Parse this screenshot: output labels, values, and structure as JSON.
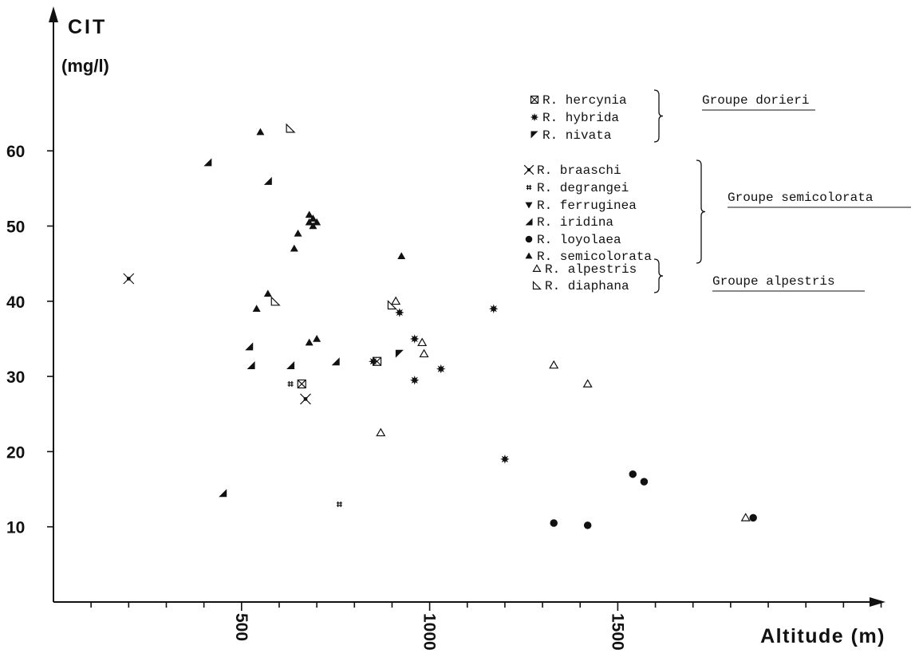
{
  "chart_data": {
    "type": "scatter",
    "ylabel": "CIT",
    "yunit": "(mg/l)",
    "xlabel": "Altitude (m)",
    "xlim": [
      0,
      2250
    ],
    "ylim": [
      0,
      70
    ],
    "x_ticks": [
      500,
      1000,
      1500
    ],
    "x_minor_step": 100,
    "y_ticks": [
      10,
      20,
      30,
      40,
      50,
      60
    ],
    "grid": false,
    "legend_placement": "top-right",
    "series": [
      {
        "name": "R. hercynia",
        "marker": "boxed-x",
        "points": [
          [
            660,
            29
          ],
          [
            860,
            32
          ]
        ]
      },
      {
        "name": "R. hybrida",
        "marker": "star",
        "points": [
          [
            920,
            38.5
          ],
          [
            960,
            35
          ],
          [
            960,
            29.5
          ],
          [
            1030,
            31
          ],
          [
            850,
            32
          ],
          [
            1170,
            39
          ],
          [
            1200,
            19
          ]
        ]
      },
      {
        "name": "R. nivata",
        "marker": "half-down",
        "points": [
          [
            920,
            33
          ]
        ]
      },
      {
        "name": "R. braaschi",
        "marker": "cross-dot",
        "points": [
          [
            200,
            43
          ],
          [
            670,
            27
          ]
        ]
      },
      {
        "name": "R. degrangei",
        "marker": "hash",
        "points": [
          [
            630,
            29
          ],
          [
            760,
            13
          ]
        ]
      },
      {
        "name": "R. ferruginea",
        "marker": "triangle-down",
        "points": []
      },
      {
        "name": "R. iridina",
        "marker": "half-up",
        "points": [
          [
            410,
            58.5
          ],
          [
            570,
            56
          ],
          [
            520,
            34
          ],
          [
            525,
            31.5
          ],
          [
            630,
            31.5
          ],
          [
            750,
            32
          ],
          [
            450,
            14.5
          ]
        ]
      },
      {
        "name": "R. loyolaea",
        "marker": "circle",
        "points": [
          [
            1330,
            10.5
          ],
          [
            1420,
            10.2
          ],
          [
            1540,
            17
          ],
          [
            1570,
            16
          ],
          [
            1860,
            11.2
          ]
        ]
      },
      {
        "name": "R. semicolorata",
        "marker": "triangle",
        "points": [
          [
            550,
            62.5
          ],
          [
            680,
            51.5
          ],
          [
            690,
            51
          ],
          [
            680,
            50.5
          ],
          [
            700,
            50.5
          ],
          [
            690,
            50
          ],
          [
            650,
            49
          ],
          [
            640,
            47
          ],
          [
            925,
            46
          ],
          [
            570,
            41
          ],
          [
            540,
            39
          ],
          [
            680,
            34.5
          ],
          [
            700,
            35
          ]
        ]
      },
      {
        "name": "R. alpestris",
        "marker": "triangle-open",
        "points": [
          [
            910,
            40
          ],
          [
            980,
            34.5
          ],
          [
            985,
            33
          ],
          [
            870,
            22.5
          ],
          [
            1330,
            31.5
          ],
          [
            1420,
            29
          ],
          [
            1840,
            11.2
          ]
        ]
      },
      {
        "name": "R. diaphana",
        "marker": "half-open",
        "points": [
          [
            630,
            63
          ],
          [
            590,
            40
          ],
          [
            900,
            39.5
          ]
        ]
      }
    ],
    "legend_groups": [
      {
        "label": "Groupe dorieri",
        "entries": [
          "R. hercynia",
          "R. hybrida",
          "R. nivata"
        ]
      },
      {
        "label": "Groupe semicolorata",
        "entries": [
          "R. braaschi",
          "R. degrangei",
          "R. ferruginea",
          "R. iridina",
          "R. loyolaea",
          "R. semicolorata"
        ]
      },
      {
        "label": "Groupe alpestris",
        "entries": [
          "R. alpestris",
          "R. diaphana"
        ]
      }
    ],
    "colors": {
      "ink": "#111111",
      "background": "#ffffff"
    }
  }
}
